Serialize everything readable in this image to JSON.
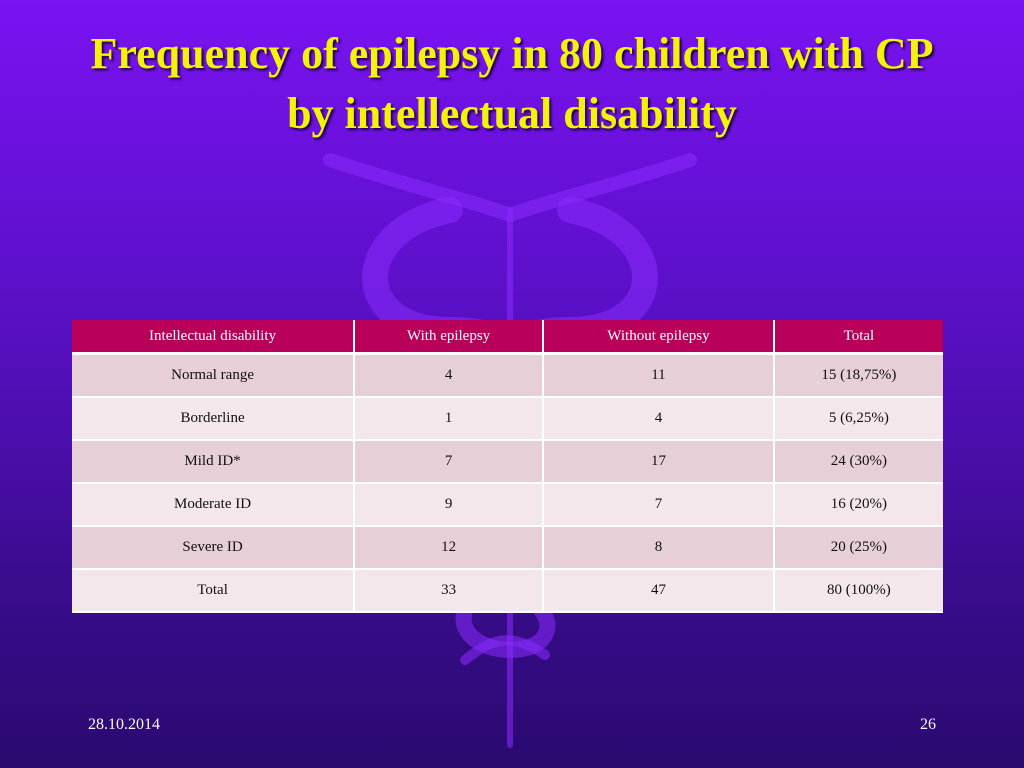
{
  "slide": {
    "title": "Frequency of epilepsy in 80 children with CP by intellectual disability",
    "date": "28.10.2014",
    "page_number": "26"
  },
  "table": {
    "headers": [
      "Intellectual disability",
      "With epilepsy",
      "Without epilepsy",
      "Total"
    ],
    "rows": [
      [
        "Normal range",
        "4",
        "11",
        "15 (18,75%)"
      ],
      [
        "Borderline",
        "1",
        "4",
        "5 (6,25%)"
      ],
      [
        "Mild ID*",
        "7",
        "17",
        "24 (30%)"
      ],
      [
        "Moderate ID",
        "9",
        "7",
        "16 (20%)"
      ],
      [
        "Severe ID",
        "12",
        "8",
        "20 (25%)"
      ],
      [
        "Total",
        "33",
        "47",
        "80 (100%)"
      ]
    ]
  },
  "colors": {
    "title": "#f5f20a",
    "header_bg": "#b8005a",
    "row_odd": "#e7cfd8",
    "row_even": "#f3e7ec"
  },
  "decoration_icon": "caduceus-watermark-icon"
}
